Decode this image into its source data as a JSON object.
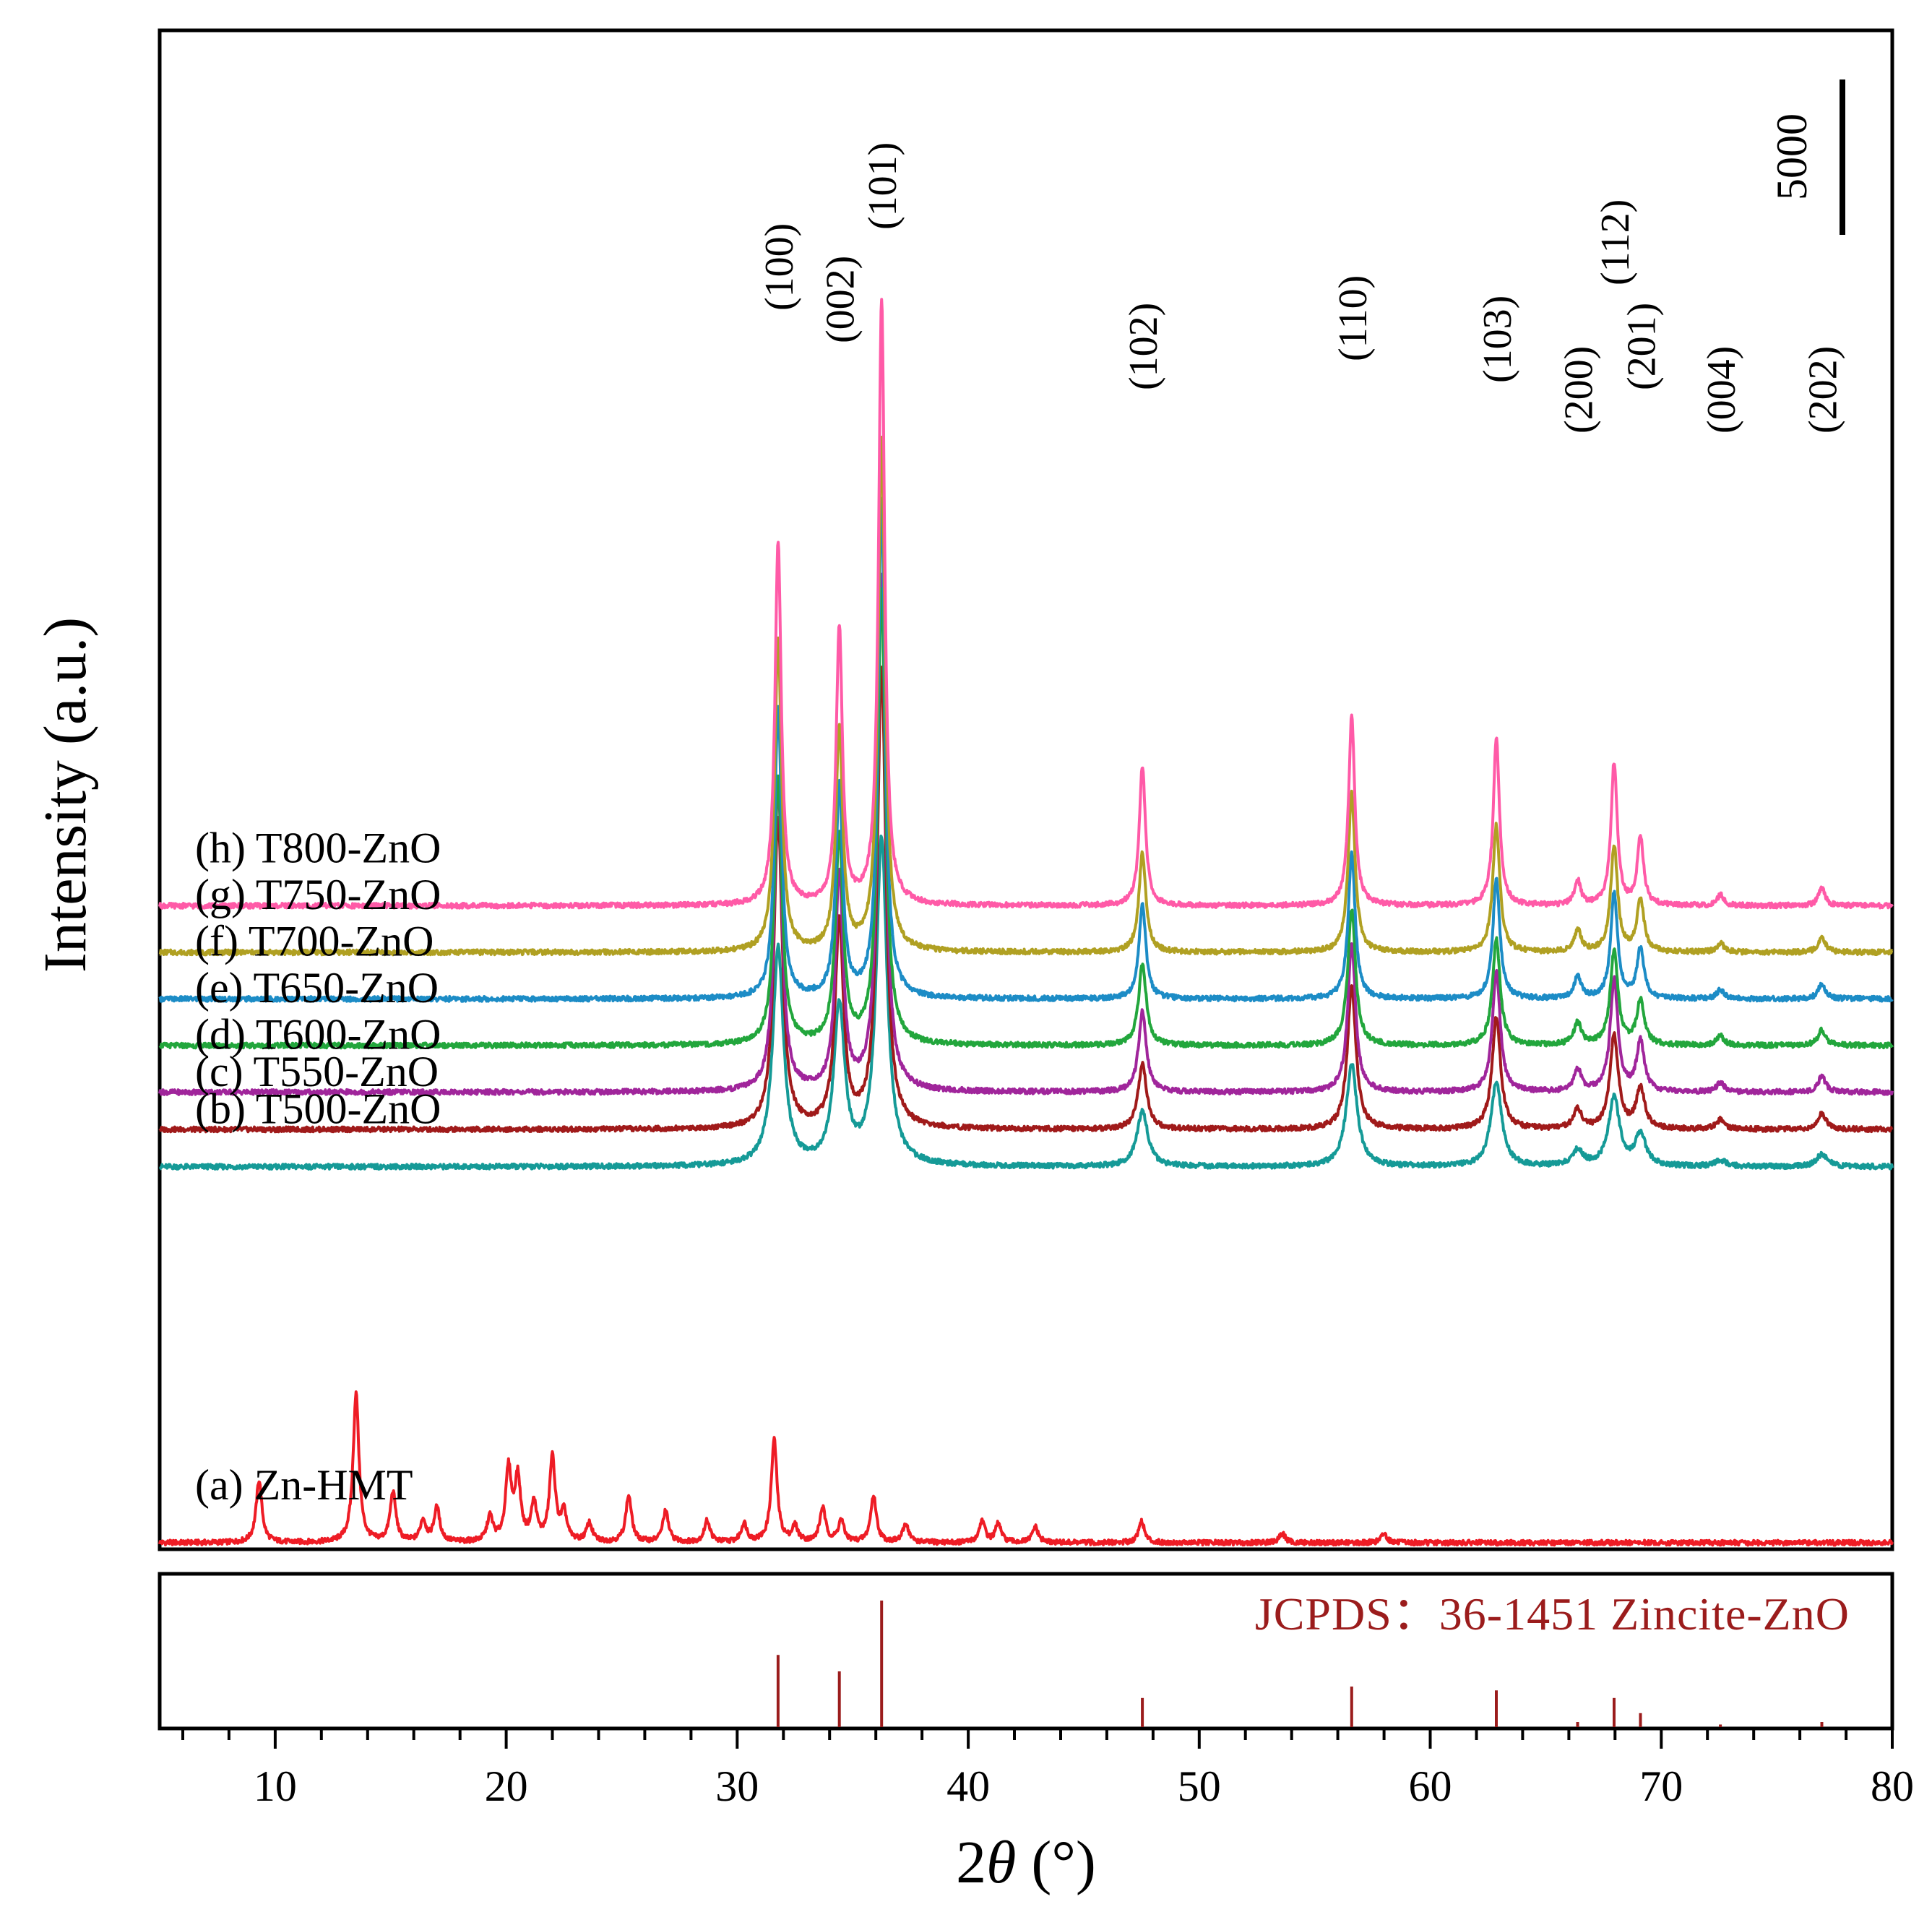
{
  "chart_data": {
    "type": "line",
    "title": "",
    "xlabel_prefix": "2",
    "xlabel_symbol": "θ",
    "xlabel_suffix": " (°)",
    "ylabel": "Intensity (a.u.)",
    "xlim": [
      5,
      80
    ],
    "x_ticks": [
      "10",
      "20",
      "30",
      "40",
      "50",
      "60",
      "70",
      "80"
    ],
    "scale_bar": {
      "label": "5000",
      "value": 5000
    },
    "peak_positions": [
      31.77,
      34.42,
      36.25,
      47.54,
      56.6,
      62.86,
      66.38,
      67.96,
      69.1,
      72.56,
      76.95
    ],
    "hkl_labels": [
      {
        "label": "(100)",
        "x": 31.77
      },
      {
        "label": "(002)",
        "x": 34.42
      },
      {
        "label": "(101)",
        "x": 36.25
      },
      {
        "label": "(102)",
        "x": 47.54
      },
      {
        "label": "(110)",
        "x": 56.6
      },
      {
        "label": "(103)",
        "x": 62.86
      },
      {
        "label": "(200)",
        "x": 66.38
      },
      {
        "label": "(112)",
        "x": 67.96
      },
      {
        "label": "(201)",
        "x": 69.1
      },
      {
        "label": "(004)",
        "x": 72.56
      },
      {
        "label": "(202)",
        "x": 76.95
      }
    ],
    "series": [
      {
        "name": "(a) Zn-HMT",
        "color": "#ee1c25",
        "baseline": 0,
        "width": 0.15,
        "peaks": [
          [
            9.3,
            2000
          ],
          [
            13.5,
            4800
          ],
          [
            15.1,
            1600
          ],
          [
            16.4,
            700
          ],
          [
            17.0,
            1100
          ],
          [
            19.3,
            800
          ],
          [
            20.1,
            2300
          ],
          [
            20.5,
            2000
          ],
          [
            21.2,
            1200
          ],
          [
            22.0,
            2700
          ],
          [
            22.5,
            900
          ],
          [
            23.6,
            600
          ],
          [
            25.3,
            1500
          ],
          [
            26.9,
            1000
          ],
          [
            28.7,
            700
          ],
          [
            30.3,
            600
          ],
          [
            31.6,
            3300
          ],
          [
            32.5,
            500
          ],
          [
            33.7,
            1100
          ],
          [
            34.5,
            700
          ],
          [
            35.9,
            1500
          ],
          [
            37.3,
            600
          ],
          [
            40.6,
            700
          ],
          [
            41.3,
            600
          ],
          [
            42.9,
            500
          ],
          [
            47.5,
            700
          ],
          [
            53.6,
            300
          ],
          [
            58.0,
            300
          ]
        ]
      },
      {
        "name": "(b) T500-ZnO",
        "color": "#159a97",
        "baseline": 12100,
        "width": 0.28,
        "peaks": [
          [
            31.77,
            7000
          ],
          [
            34.42,
            5100
          ],
          [
            36.25,
            10500
          ],
          [
            47.54,
            1800
          ],
          [
            56.6,
            3300
          ],
          [
            62.86,
            2700
          ],
          [
            66.38,
            500
          ],
          [
            67.96,
            2200
          ],
          [
            69.1,
            1000
          ],
          [
            72.56,
            200
          ],
          [
            76.95,
            400
          ]
        ]
      },
      {
        "name": "(c) T550-ZnO",
        "color": "#a01a1a",
        "baseline": 13300,
        "width": 0.22,
        "peaks": [
          [
            31.77,
            10000
          ],
          [
            34.42,
            6600
          ],
          [
            36.25,
            14800
          ],
          [
            47.54,
            2100
          ],
          [
            56.6,
            4600
          ],
          [
            62.86,
            3600
          ],
          [
            66.38,
            600
          ],
          [
            67.96,
            3000
          ],
          [
            69.1,
            1300
          ],
          [
            72.56,
            300
          ],
          [
            76.95,
            500
          ]
        ]
      },
      {
        "name": "(d) T600-ZnO",
        "color": "#a0259b",
        "baseline": 14500,
        "width": 0.2,
        "peaks": [
          [
            31.77,
            10000
          ],
          [
            34.42,
            7000
          ],
          [
            36.25,
            16500
          ],
          [
            47.54,
            2600
          ],
          [
            56.6,
            4800
          ],
          [
            62.86,
            3900
          ],
          [
            66.38,
            700
          ],
          [
            67.96,
            3600
          ],
          [
            69.1,
            1600
          ],
          [
            72.56,
            300
          ],
          [
            76.95,
            500
          ]
        ]
      },
      {
        "name": "(e) T650-ZnO",
        "color": "#22a63c",
        "baseline": 16000,
        "width": 0.2,
        "peaks": [
          [
            31.77,
            8600
          ],
          [
            34.42,
            6700
          ],
          [
            36.25,
            14600
          ],
          [
            47.54,
            2600
          ],
          [
            56.6,
            4400
          ],
          [
            62.86,
            3400
          ],
          [
            66.38,
            700
          ],
          [
            67.96,
            3000
          ],
          [
            69.1,
            1400
          ],
          [
            72.56,
            300
          ],
          [
            76.95,
            500
          ]
        ]
      },
      {
        "name": "(f) T700-ZnO",
        "color": "#1c8cc6",
        "baseline": 17500,
        "width": 0.18,
        "peaks": [
          [
            31.77,
            9400
          ],
          [
            34.42,
            6800
          ],
          [
            36.25,
            16000
          ],
          [
            47.54,
            3000
          ],
          [
            56.6,
            4700
          ],
          [
            62.86,
            3900
          ],
          [
            66.38,
            700
          ],
          [
            67.96,
            3400
          ],
          [
            69.1,
            1600
          ],
          [
            72.56,
            300
          ],
          [
            76.95,
            500
          ]
        ]
      },
      {
        "name": "(g) T750-ZnO",
        "color": "#b0a022",
        "baseline": 19000,
        "width": 0.18,
        "peaks": [
          [
            31.77,
            10000
          ],
          [
            34.42,
            7100
          ],
          [
            36.25,
            16500
          ],
          [
            47.54,
            3200
          ],
          [
            56.6,
            5100
          ],
          [
            62.86,
            4100
          ],
          [
            66.38,
            700
          ],
          [
            67.96,
            3400
          ],
          [
            69.1,
            1700
          ],
          [
            72.56,
            300
          ],
          [
            76.95,
            500
          ]
        ]
      },
      {
        "name": "(h) T800-ZnO",
        "color": "#ff5aa7",
        "baseline": 20500,
        "width": 0.16,
        "peaks": [
          [
            31.77,
            11700
          ],
          [
            34.42,
            8900
          ],
          [
            36.25,
            19500
          ],
          [
            47.54,
            4500
          ],
          [
            56.6,
            6100
          ],
          [
            62.86,
            5400
          ],
          [
            66.38,
            800
          ],
          [
            67.96,
            4600
          ],
          [
            69.1,
            2200
          ],
          [
            72.56,
            350
          ],
          [
            76.95,
            600
          ]
        ]
      }
    ],
    "reference": {
      "label": "JCPDS：36-1451 Zincite-ZnO",
      "color": "#9b1c1c",
      "sticks": [
        [
          31.77,
          57
        ],
        [
          34.42,
          44
        ],
        [
          36.25,
          100
        ],
        [
          47.54,
          23
        ],
        [
          56.6,
          32
        ],
        [
          62.86,
          29
        ],
        [
          66.38,
          4
        ],
        [
          67.96,
          23
        ],
        [
          69.1,
          11
        ],
        [
          72.56,
          2
        ],
        [
          76.95,
          4
        ]
      ]
    }
  }
}
